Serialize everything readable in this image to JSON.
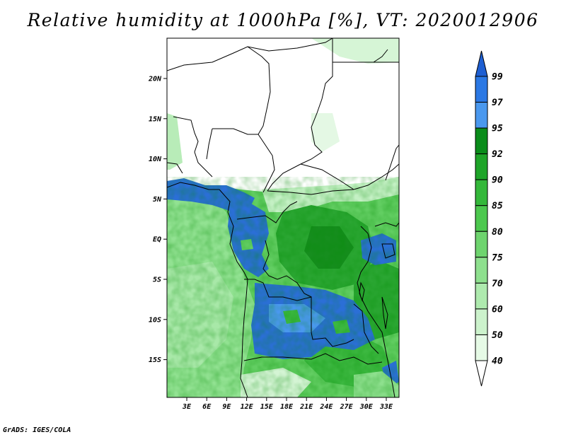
{
  "title": "Relative humidity at 1000hPa [%], VT: 2020012906",
  "credit": "GrADS: IGES/COLA",
  "map": {
    "lon_ticks": [
      "3E",
      "6E",
      "9E",
      "12E",
      "15E",
      "18E",
      "21E",
      "24E",
      "27E",
      "30E",
      "33E"
    ],
    "lat_ticks": [
      "20N",
      "15N",
      "10N",
      "5N",
      "EQ",
      "5S",
      "10S",
      "15S"
    ],
    "lon_range": [
      0,
      35
    ],
    "lat_range": [
      -20,
      25
    ]
  },
  "colorbar": {
    "levels": [
      "99",
      "97",
      "95",
      "92",
      "90",
      "85",
      "80",
      "75",
      "70",
      "60",
      "50",
      "40"
    ],
    "colors": [
      "#1e5fd2",
      "#2b78e4",
      "#4a98ee",
      "#0a8c1a",
      "#1ea428",
      "#34b83a",
      "#4cc84e",
      "#6ed46e",
      "#8ee08e",
      "#aeeaae",
      "#ccf2cc",
      "#e6fae6",
      "#ffffff"
    ]
  }
}
